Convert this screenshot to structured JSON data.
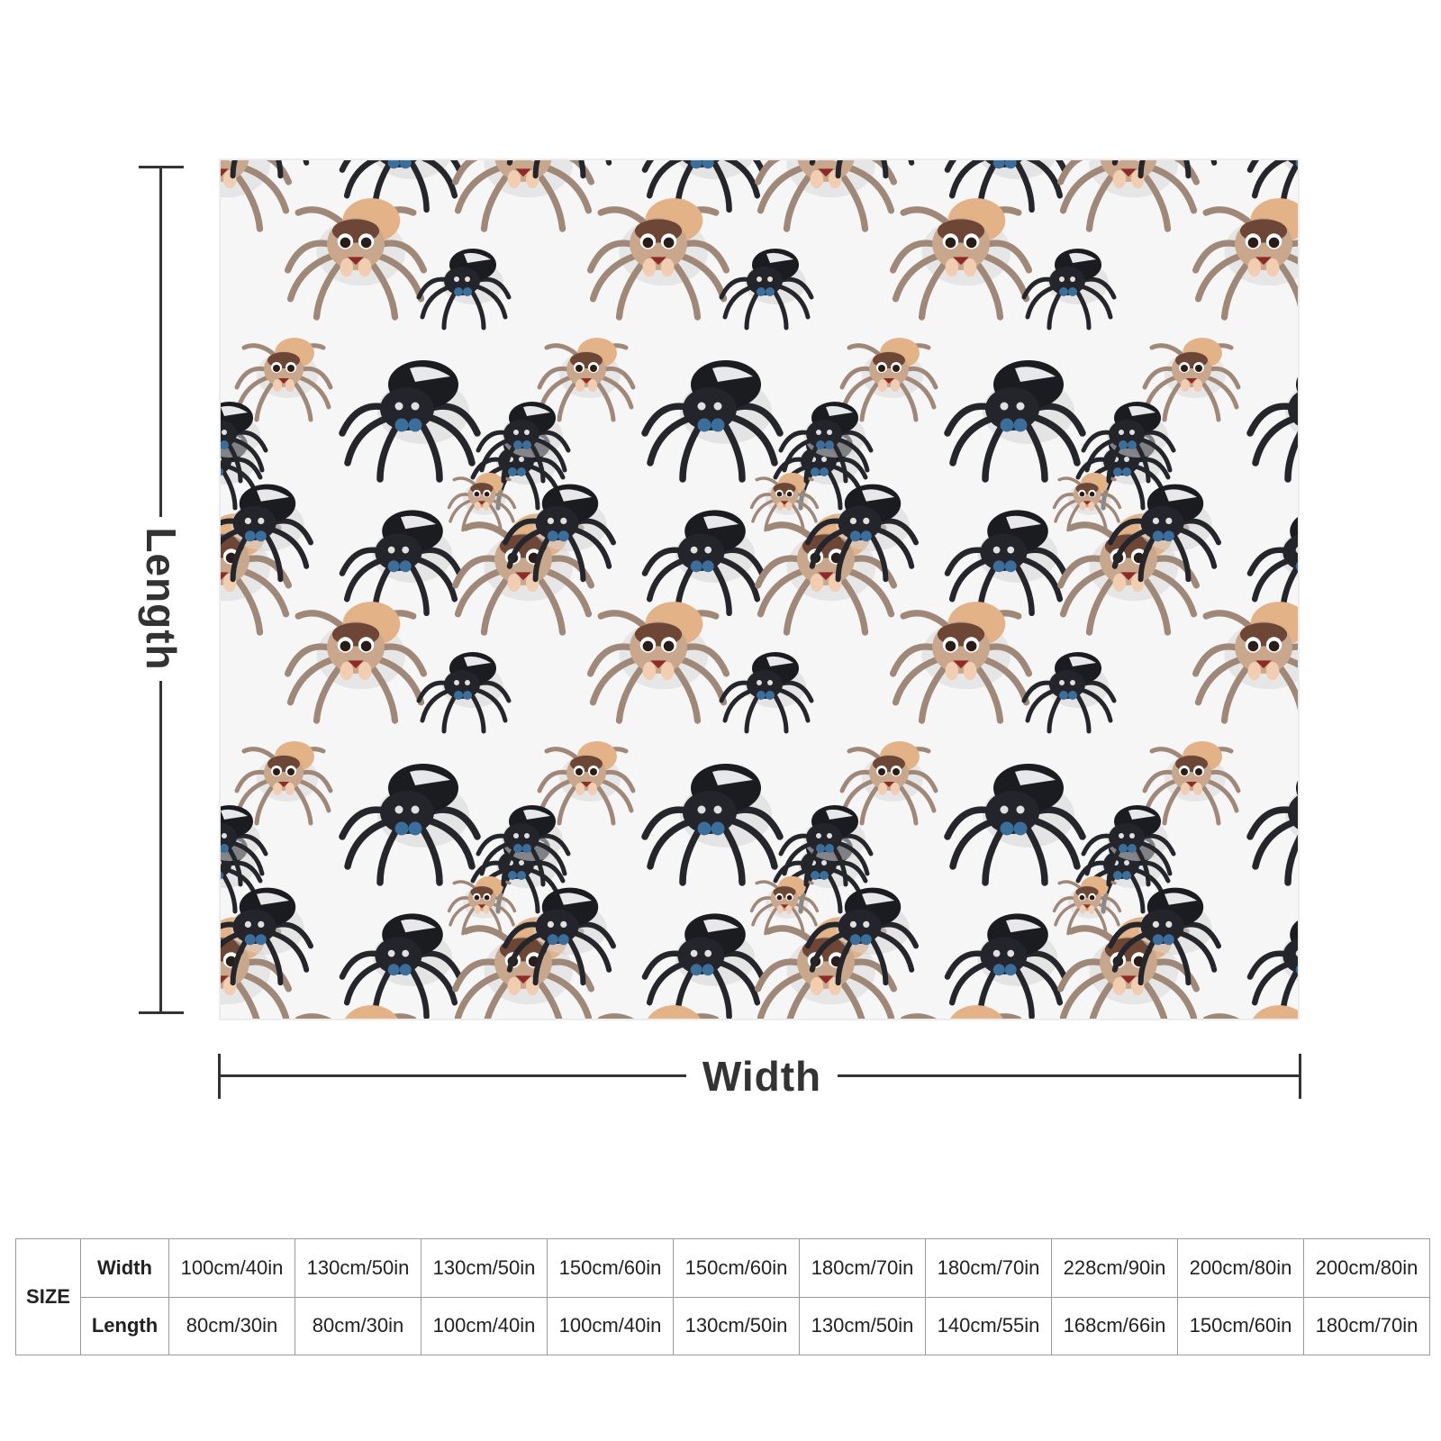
{
  "dimensions": {
    "length_label": "Length",
    "width_label": "Width"
  },
  "product": {
    "pattern": "jumping-spider-pattern",
    "colors": {
      "background": "#f6f6f6",
      "tan_spider_body": "#e8b98f",
      "tan_spider_legs": "#b49a86",
      "black_spider_body": "#1d1f24",
      "black_spider_accent": "#3d6f9b"
    }
  },
  "size_table": {
    "header": "SIZE",
    "width_label": "Width",
    "length_label": "Length",
    "widths": [
      "100cm/40in",
      "130cm/50in",
      "130cm/50in",
      "150cm/60in",
      "150cm/60in",
      "180cm/70in",
      "180cm/70in",
      "228cm/90in",
      "200cm/80in",
      "200cm/80in"
    ],
    "lengths": [
      "80cm/30in",
      "80cm/30in",
      "100cm/40in",
      "100cm/40in",
      "130cm/50in",
      "130cm/50in",
      "140cm/55in",
      "168cm/66in",
      "150cm/60in",
      "180cm/70in"
    ]
  }
}
